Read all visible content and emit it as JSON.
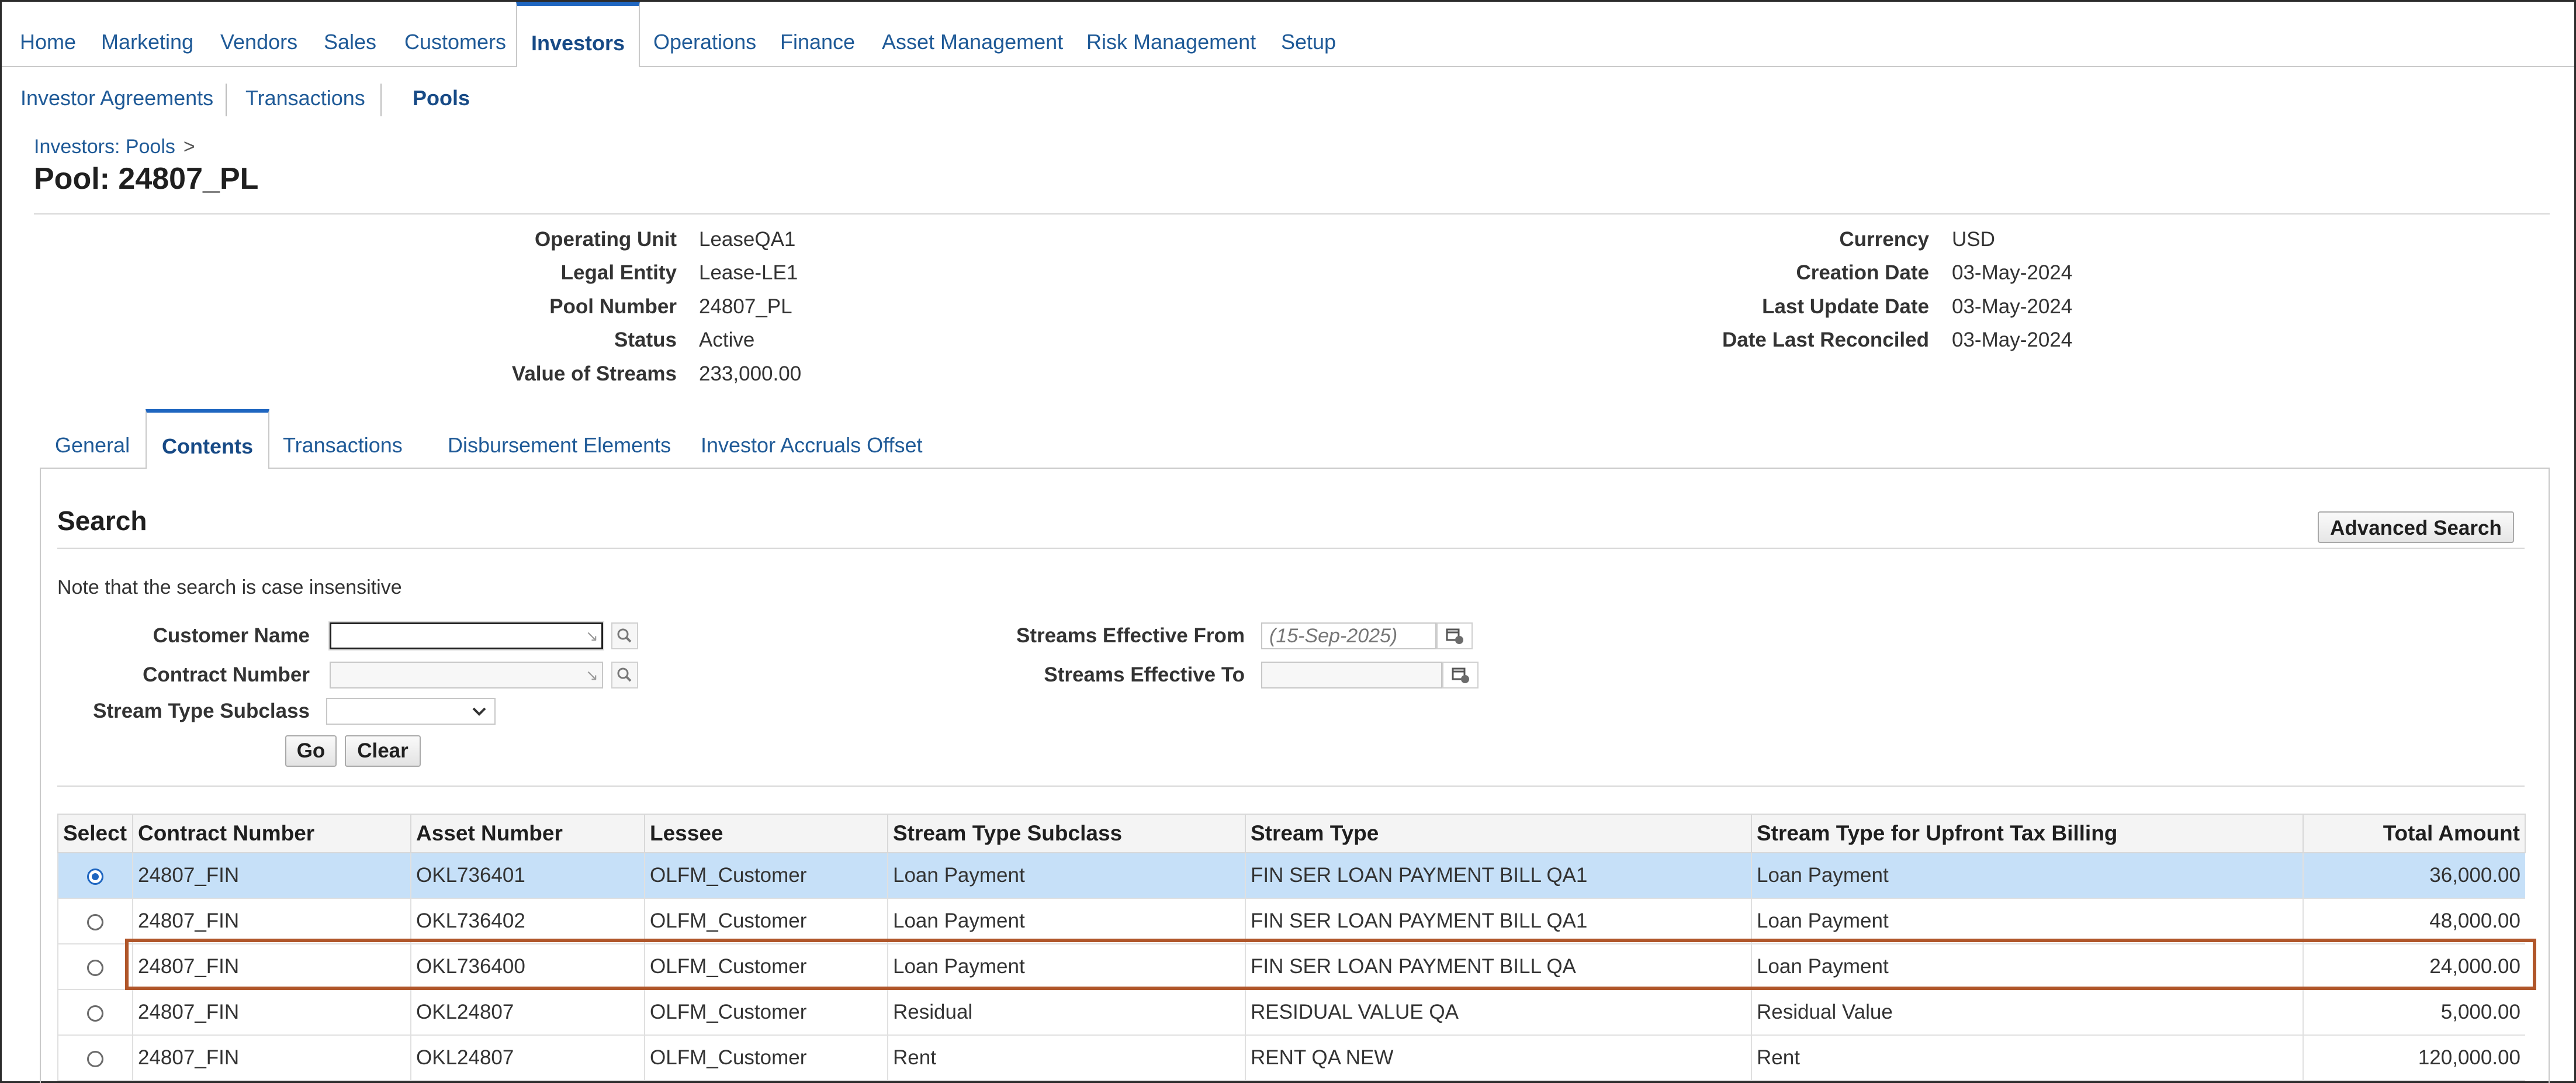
{
  "topnav": {
    "tabs": [
      "Home",
      "Marketing",
      "Vendors",
      "Sales",
      "Customers",
      "Investors",
      "Operations",
      "Finance",
      "Asset Management",
      "Risk Management",
      "Setup"
    ],
    "active": "Investors"
  },
  "subnav": {
    "items": [
      "Investor Agreements",
      "Transactions",
      "Pools"
    ],
    "active": "Pools"
  },
  "breadcrumb": {
    "label": "Investors: Pools",
    "arrow": ">"
  },
  "page_title": "Pool: 24807_PL",
  "details_left": [
    {
      "label": "Operating Unit",
      "value": "LeaseQA1"
    },
    {
      "label": "Legal Entity",
      "value": "Lease-LE1"
    },
    {
      "label": "Pool Number",
      "value": "24807_PL"
    },
    {
      "label": "Status",
      "value": "Active"
    },
    {
      "label": "Value of Streams",
      "value": "233,000.00"
    }
  ],
  "details_right": [
    {
      "label": "Currency",
      "value": "USD"
    },
    {
      "label": "Creation Date",
      "value": "03-May-2024"
    },
    {
      "label": "Last Update Date",
      "value": "03-May-2024"
    },
    {
      "label": "Date Last Reconciled",
      "value": "03-May-2024"
    }
  ],
  "subtabs": {
    "items": [
      "General",
      "Contents",
      "Transactions",
      "Disbursement Elements",
      "Investor Accruals Offset"
    ],
    "active": "Contents"
  },
  "search": {
    "header": "Search",
    "advanced_button": "Advanced Search",
    "note": "Note that the search is case insensitive",
    "customer_name_label": "Customer Name",
    "customer_name_value": "",
    "contract_number_label": "Contract Number",
    "contract_number_value": "",
    "stream_type_subclass_label": "Stream Type Subclass",
    "stream_type_subclass_value": "",
    "streams_from_label": "Streams Effective From",
    "streams_from_placeholder": "(15-Sep-2025)",
    "streams_to_label": "Streams Effective To",
    "streams_to_value": "",
    "go_button": "Go",
    "clear_button": "Clear"
  },
  "table": {
    "columns": [
      "Select",
      "Contract Number",
      "Asset Number",
      "Lessee",
      "Stream Type Subclass",
      "Stream Type",
      "Stream Type for Upfront Tax Billing",
      "Total Amount"
    ],
    "rows": [
      {
        "selected": true,
        "contract": "24807_FIN",
        "asset": "OKL736401",
        "lessee": "OLFM_Customer",
        "subclass": "Loan Payment",
        "stream_type": "FIN SER LOAN PAYMENT BILL QA1",
        "upfront": "Loan Payment",
        "amount": "36,000.00"
      },
      {
        "selected": false,
        "contract": "24807_FIN",
        "asset": "OKL736402",
        "lessee": "OLFM_Customer",
        "subclass": "Loan Payment",
        "stream_type": "FIN SER LOAN PAYMENT BILL QA1",
        "upfront": "Loan Payment",
        "amount": "48,000.00"
      },
      {
        "selected": false,
        "contract": "24807_FIN",
        "asset": "OKL736400",
        "lessee": "OLFM_Customer",
        "subclass": "Loan Payment",
        "stream_type": "FIN SER LOAN PAYMENT BILL QA",
        "upfront": "Loan Payment",
        "amount": "24,000.00"
      },
      {
        "selected": false,
        "contract": "24807_FIN",
        "asset": "OKL24807",
        "lessee": "OLFM_Customer",
        "subclass": "Residual",
        "stream_type": "RESIDUAL VALUE QA",
        "upfront": "Residual Value",
        "amount": "5,000.00"
      },
      {
        "selected": false,
        "contract": "24807_FIN",
        "asset": "OKL24807",
        "lessee": "OLFM_Customer",
        "subclass": "Rent",
        "stream_type": "RENT QA NEW",
        "upfront": "Rent",
        "amount": "120,000.00"
      }
    ],
    "highlighted_row_index": 2
  },
  "colors": {
    "link": "#1f5a97",
    "active_tab_accent": "#1f66c0",
    "selected_row": "#c6e0f8",
    "highlight_border": "#b0562a"
  }
}
